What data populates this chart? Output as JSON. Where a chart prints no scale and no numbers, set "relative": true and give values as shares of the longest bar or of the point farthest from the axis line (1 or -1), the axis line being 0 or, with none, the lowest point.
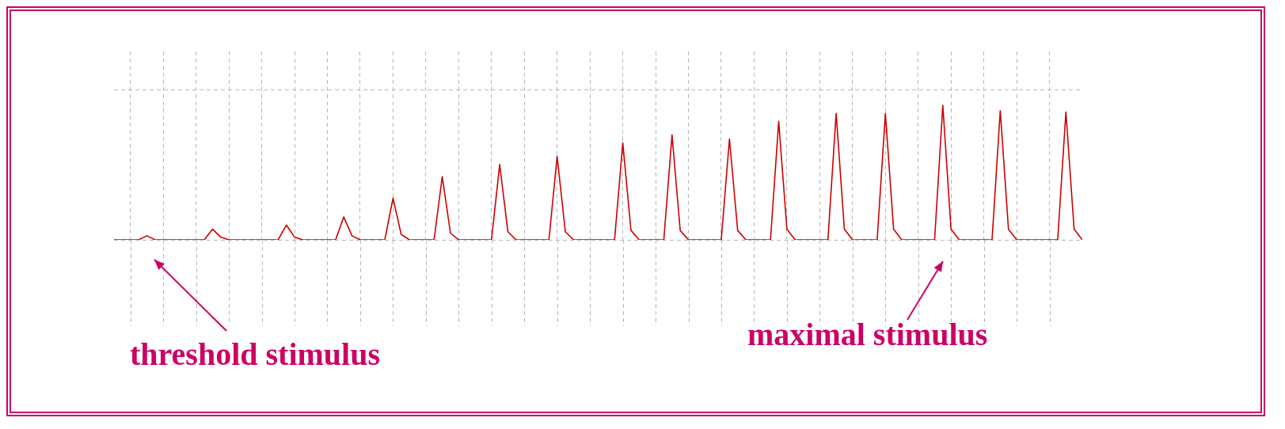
{
  "chart_data": {
    "type": "line",
    "relative": true,
    "color": "#cc0000",
    "marker": "none",
    "grid": true,
    "categories": [
      null,
      null,
      null,
      null,
      null,
      null,
      null,
      null,
      null,
      null,
      null,
      null,
      null,
      null,
      null,
      null,
      null,
      null,
      null,
      null,
      null,
      null,
      null,
      null,
      null,
      null,
      null,
      null,
      null,
      null,
      null,
      null,
      null,
      null,
      null,
      null,
      null,
      null,
      null,
      null,
      null,
      null,
      null,
      null,
      null,
      null,
      null,
      null,
      null,
      null,
      null,
      null,
      null,
      null,
      null,
      null,
      null,
      null,
      null,
      null,
      null,
      null,
      null,
      null,
      null,
      null,
      null,
      null,
      null,
      null,
      null,
      null,
      null,
      null,
      null,
      null,
      null,
      null,
      null,
      null,
      null,
      null,
      null,
      null,
      null,
      null,
      null,
      null,
      null,
      null,
      null,
      null,
      null,
      null,
      null,
      null,
      null,
      null,
      null,
      null,
      null,
      null,
      null,
      null,
      null,
      null,
      null,
      null,
      null,
      null,
      null,
      null,
      null,
      null,
      null,
      null,
      null,
      null,
      null
    ],
    "values": [
      0,
      0,
      0,
      0,
      0.03,
      0,
      0,
      0,
      0,
      0,
      0,
      0,
      0.08,
      0.02,
      0,
      0,
      0,
      0,
      0,
      0,
      0,
      0.11,
      0.02,
      0,
      0,
      0,
      0,
      0,
      0.17,
      0.03,
      0,
      0,
      0,
      0,
      0.31,
      0.04,
      0,
      0,
      0,
      0,
      0.47,
      0.05,
      0,
      0,
      0,
      0,
      0,
      0.56,
      0.06,
      0,
      0,
      0,
      0,
      0,
      0.62,
      0.06,
      0,
      0,
      0,
      0,
      0,
      0,
      0.72,
      0.07,
      0,
      0,
      0,
      0,
      0.78,
      0.07,
      0,
      0,
      0,
      0,
      0,
      0.75,
      0.07,
      0,
      0,
      0,
      0,
      0.88,
      0.08,
      0,
      0,
      0,
      0,
      0,
      0.94,
      0.08,
      0,
      0,
      0,
      0,
      0.94,
      0.08,
      0,
      0,
      0,
      0,
      0,
      1,
      0.08,
      0,
      0,
      0,
      0,
      0,
      0.96,
      0.08,
      0,
      0,
      0,
      0,
      0,
      0,
      0.95,
      0.08,
      0
    ],
    "annotations": [
      "threshold stimulus",
      "maximal stimulus"
    ]
  }
}
